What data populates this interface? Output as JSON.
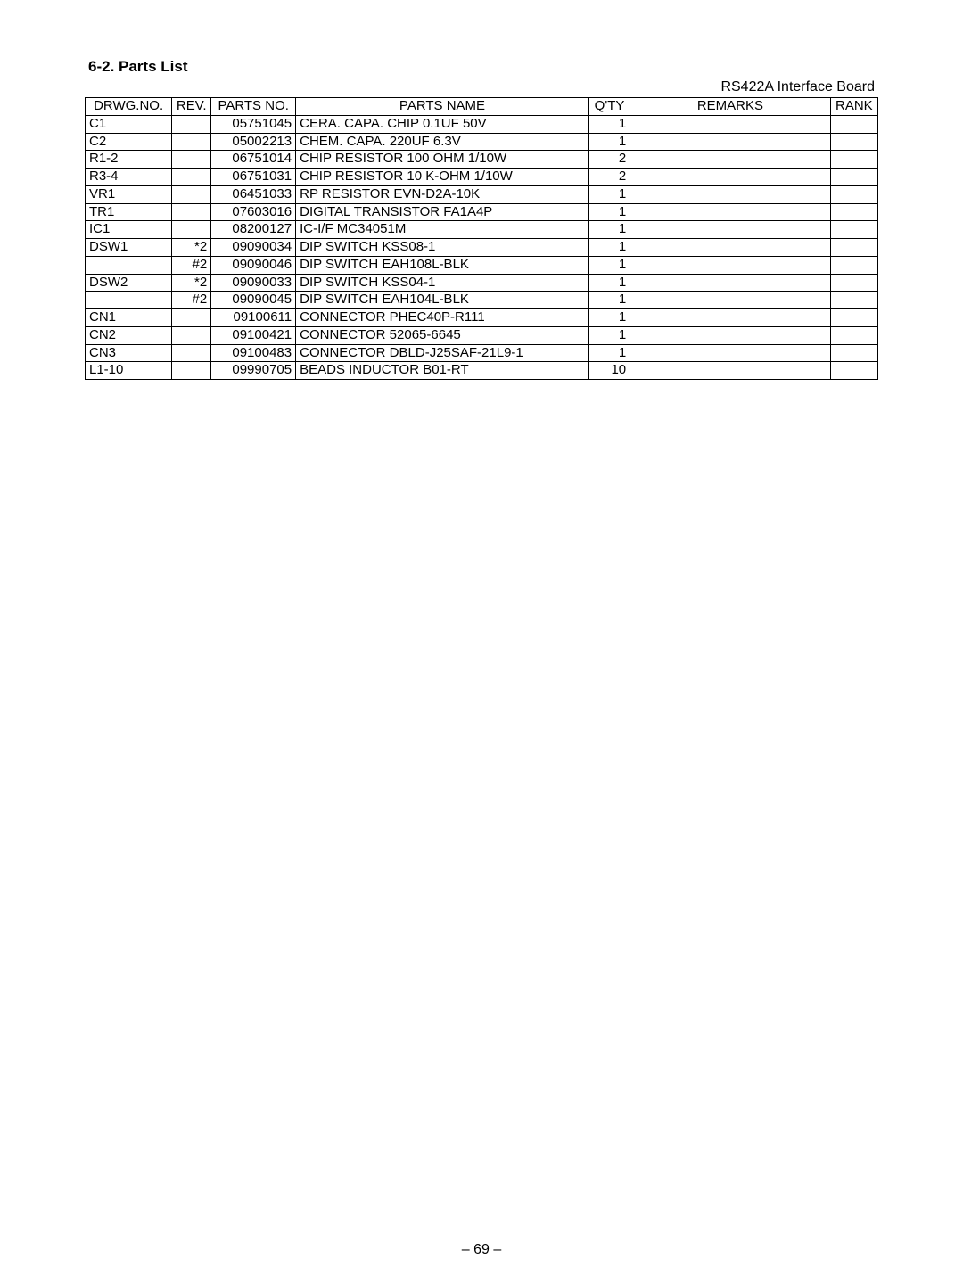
{
  "section_title": "6-2.  Parts List",
  "board_name": "RS422A Interface Board",
  "page_number": "– 69 –",
  "table": {
    "columns": [
      {
        "key": "drwg",
        "label": "DRWG.NO.",
        "class": "col-drwg"
      },
      {
        "key": "rev",
        "label": "REV.",
        "class": "col-rev"
      },
      {
        "key": "partsno",
        "label": "PARTS NO.",
        "class": "col-partsno"
      },
      {
        "key": "name",
        "label": "PARTS NAME",
        "class": "col-name"
      },
      {
        "key": "qty",
        "label": "Q'TY",
        "class": "col-qty"
      },
      {
        "key": "remarks",
        "label": "REMARKS",
        "class": "col-remarks"
      },
      {
        "key": "rank",
        "label": "RANK",
        "class": "col-rank"
      }
    ],
    "rows": [
      {
        "drwg": "C1",
        "rev": "",
        "partsno": "05751045",
        "name": "CERA. CAPA. CHIP  0.1UF 50V",
        "qty": "1",
        "remarks": "",
        "rank": ""
      },
      {
        "drwg": "C2",
        "rev": "",
        "partsno": "05002213",
        "name": "CHEM. CAPA.  220UF 6.3V",
        "qty": "1",
        "remarks": "",
        "rank": ""
      },
      {
        "drwg": "R1-2",
        "rev": "",
        "partsno": "06751014",
        "name": "CHIP RESISTOR 100 OHM 1/10W",
        "qty": "2",
        "remarks": "",
        "rank": ""
      },
      {
        "drwg": "R3-4",
        "rev": "",
        "partsno": "06751031",
        "name": "CHIP RESISTOR 10 K-OHM 1/10W",
        "qty": "2",
        "remarks": "",
        "rank": ""
      },
      {
        "drwg": "VR1",
        "rev": "",
        "partsno": "06451033",
        "name": "RP RESISTOR EVN-D2A-10K",
        "qty": "1",
        "remarks": "",
        "rank": ""
      },
      {
        "drwg": "TR1",
        "rev": "",
        "partsno": "07603016",
        "name": "DIGITAL TRANSISTOR FA1A4P",
        "qty": "1",
        "remarks": "",
        "rank": ""
      },
      {
        "drwg": "IC1",
        "rev": "",
        "partsno": "08200127",
        "name": "IC-I/F MC34051M",
        "qty": "1",
        "remarks": "",
        "rank": ""
      },
      {
        "drwg": "DSW1",
        "rev": "*2",
        "partsno": "09090034",
        "name": "DIP SWITCH KSS08-1",
        "qty": "1",
        "remarks": "",
        "rank": ""
      },
      {
        "drwg": "",
        "rev": "#2",
        "partsno": "09090046",
        "name": "DIP SWITCH EAH108L-BLK",
        "qty": "1",
        "remarks": "",
        "rank": ""
      },
      {
        "drwg": "DSW2",
        "rev": "*2",
        "partsno": "09090033",
        "name": "DIP SWITCH KSS04-1",
        "qty": "1",
        "remarks": "",
        "rank": ""
      },
      {
        "drwg": "",
        "rev": "#2",
        "partsno": "09090045",
        "name": "DIP SWITCH EAH104L-BLK",
        "qty": "1",
        "remarks": "",
        "rank": ""
      },
      {
        "drwg": "CN1",
        "rev": "",
        "partsno": "09100611",
        "name": "CONNECTOR PHEC40P-R111",
        "qty": "1",
        "remarks": "",
        "rank": ""
      },
      {
        "drwg": "CN2",
        "rev": "",
        "partsno": "09100421",
        "name": "CONNECTOR 52065-6645",
        "qty": "1",
        "remarks": "",
        "rank": ""
      },
      {
        "drwg": "CN3",
        "rev": "",
        "partsno": "09100483",
        "name": "CONNECTOR DBLD-J25SAF-21L9-1",
        "qty": "1",
        "remarks": "",
        "rank": ""
      },
      {
        "drwg": "L1-10",
        "rev": "",
        "partsno": "09990705",
        "name": "BEADS INDUCTOR B01-RT",
        "qty": "10",
        "remarks": "",
        "rank": ""
      }
    ]
  }
}
